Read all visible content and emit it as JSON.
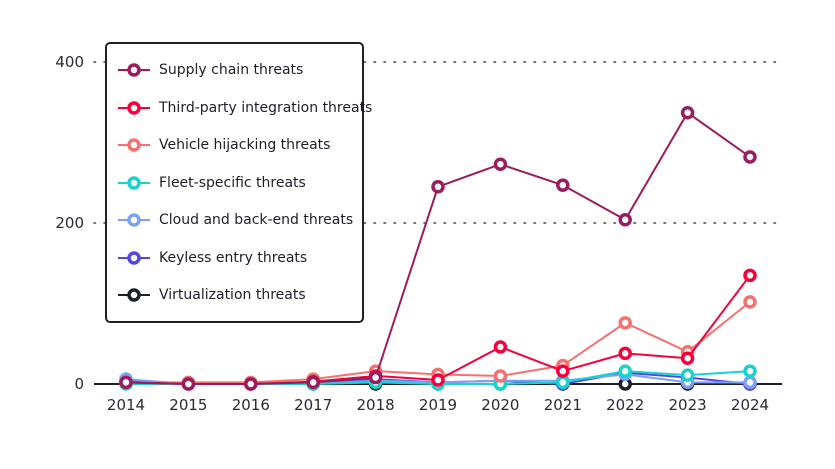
{
  "chart_data": {
    "type": "line",
    "title": "",
    "xlabel": "",
    "ylabel": "",
    "x": [
      "2014",
      "2015",
      "2016",
      "2017",
      "2018",
      "2019",
      "2020",
      "2021",
      "2022",
      "2023",
      "2024"
    ],
    "yticks": [
      "0",
      "200",
      "400"
    ],
    "ytick_values": [
      0,
      200,
      400
    ],
    "ylim": [
      0,
      400
    ],
    "grid": "dotted horizontal",
    "legend_position": "top-left",
    "series": [
      {
        "name": "Supply chain threats",
        "color": "#9b1c5e",
        "values": [
          2,
          0,
          0,
          2,
          8,
          245,
          273,
          247,
          204,
          337,
          282
        ]
      },
      {
        "name": "Third-party integration threats",
        "color": "#f5003a",
        "values": [
          2,
          0,
          0,
          3,
          10,
          5,
          46,
          16,
          38,
          32,
          135
        ]
      },
      {
        "name": "Vehicle hijacking threats",
        "color": "#f77070",
        "values": [
          2,
          2,
          2,
          6,
          16,
          12,
          10,
          23,
          76,
          40,
          102
        ]
      },
      {
        "name": "Fleet-specific threats",
        "color": "#16d3cf",
        "values": [
          0,
          0,
          0,
          0,
          2,
          0,
          0,
          2,
          16,
          11,
          16
        ]
      },
      {
        "name": "Cloud and back-end threats",
        "color": "#7aa1f5",
        "values": [
          6,
          0,
          0,
          0,
          4,
          2,
          4,
          4,
          12,
          2,
          2
        ]
      },
      {
        "name": "Keyless entry threats",
        "color": "#4f46e5",
        "values": [
          4,
          0,
          0,
          2,
          6,
          2,
          4,
          0,
          14,
          8,
          0
        ]
      },
      {
        "name": "Virtualization threats",
        "color": "#1d1f2b",
        "values": [
          3,
          0,
          0,
          0,
          0,
          0,
          0,
          0,
          0,
          0,
          0
        ]
      }
    ]
  }
}
